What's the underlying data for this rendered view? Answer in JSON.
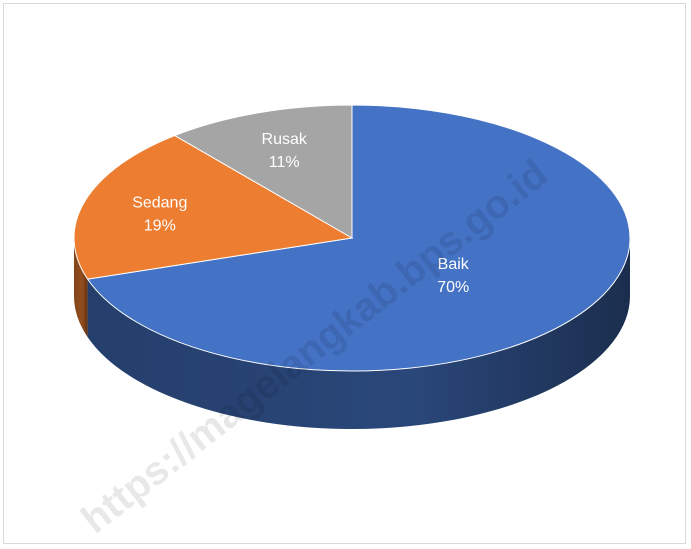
{
  "chart_data": {
    "type": "pie",
    "style": "3d",
    "slices": [
      {
        "label": "Baik",
        "value": 70,
        "value_label": "70%",
        "color": "#4472C4"
      },
      {
        "label": "Sedang",
        "value": 19,
        "value_label": "19%",
        "color": "#ED7D31"
      },
      {
        "label": "Rusak",
        "value": 11,
        "value_label": "11%",
        "color": "#A5A5A5"
      }
    ],
    "legend": "none",
    "data_labels": "inside"
  },
  "watermark": "https://magelangkab.bps.go.id"
}
